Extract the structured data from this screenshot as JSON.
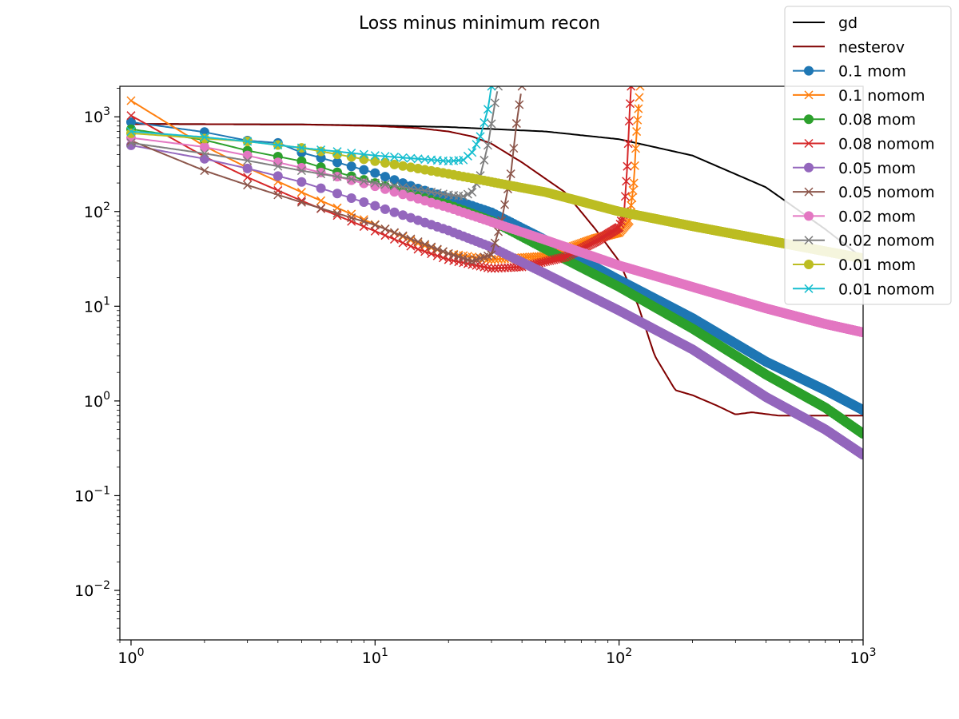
{
  "chart_data": {
    "type": "line",
    "title": "Loss minus minimum recon",
    "xlabel": "",
    "ylabel": "",
    "xscale": "log",
    "yscale": "log",
    "xlim": [
      0.9,
      1000
    ],
    "ylim": [
      0.003,
      2100
    ],
    "grid": false,
    "legend_position": "top-right",
    "x_ticks": [
      {
        "value": 1,
        "base": "10",
        "exp": "0"
      },
      {
        "value": 10,
        "base": "10",
        "exp": "1"
      },
      {
        "value": 100,
        "base": "10",
        "exp": "2"
      },
      {
        "value": 1000,
        "base": "10",
        "exp": "3"
      }
    ],
    "y_ticks": [
      {
        "value": 0.01,
        "base": "10",
        "exp": "−2"
      },
      {
        "value": 0.1,
        "base": "10",
        "exp": "−1"
      },
      {
        "value": 1,
        "base": "10",
        "exp": "0"
      },
      {
        "value": 10,
        "base": "10",
        "exp": "1"
      },
      {
        "value": 100,
        "base": "10",
        "exp": "2"
      },
      {
        "value": 1000,
        "base": "10",
        "exp": "3"
      }
    ],
    "series": [
      {
        "name": "gd",
        "color": "#000000",
        "marker": "none",
        "points": [
          [
            1,
            840
          ],
          [
            5,
            830
          ],
          [
            10,
            810
          ],
          [
            20,
            780
          ],
          [
            50,
            700
          ],
          [
            100,
            580
          ],
          [
            200,
            390
          ],
          [
            400,
            180
          ],
          [
            700,
            65
          ],
          [
            1000,
            32
          ]
        ]
      },
      {
        "name": "nesterov",
        "color": "#800000",
        "marker": "none",
        "points": [
          [
            1,
            840
          ],
          [
            5,
            830
          ],
          [
            10,
            800
          ],
          [
            15,
            760
          ],
          [
            20,
            700
          ],
          [
            25,
            620
          ],
          [
            30,
            520
          ],
          [
            40,
            330
          ],
          [
            60,
            160
          ],
          [
            80,
            65
          ],
          [
            100,
            30
          ],
          [
            120,
            10
          ],
          [
            140,
            3
          ],
          [
            170,
            1.3
          ],
          [
            200,
            1.15
          ],
          [
            250,
            0.9
          ],
          [
            300,
            0.72
          ],
          [
            350,
            0.76
          ],
          [
            450,
            0.7
          ],
          [
            600,
            0.7
          ],
          [
            800,
            0.7
          ],
          [
            1000,
            0.7
          ]
        ]
      },
      {
        "name": "0.1 mom",
        "color": "#1f77b4",
        "marker": "circle",
        "points": [
          [
            1,
            880
          ],
          [
            2,
            690
          ],
          [
            3,
            560
          ],
          [
            4,
            530
          ],
          [
            5,
            420
          ],
          [
            7,
            330
          ],
          [
            10,
            255
          ],
          [
            15,
            175
          ],
          [
            20,
            140
          ],
          [
            30,
            98
          ],
          [
            50,
            50
          ],
          [
            100,
            19
          ],
          [
            200,
            7.5
          ],
          [
            400,
            2.6
          ],
          [
            700,
            1.3
          ],
          [
            1000,
            0.8
          ]
        ]
      },
      {
        "name": "0.1 nomom",
        "color": "#ff7f0e",
        "marker": "x",
        "points": [
          [
            1,
            1480
          ],
          [
            2,
            490
          ],
          [
            3,
            290
          ],
          [
            5,
            160
          ],
          [
            10,
            73
          ],
          [
            15,
            46
          ],
          [
            20,
            36
          ],
          [
            30,
            31
          ],
          [
            50,
            34
          ],
          [
            80,
            52
          ],
          [
            100,
            60
          ],
          [
            110,
            80
          ],
          [
            115,
            200
          ],
          [
            118,
            700
          ],
          [
            122,
            2100
          ]
        ]
      },
      {
        "name": "0.08 mom",
        "color": "#2ca02c",
        "marker": "circle",
        "points": [
          [
            1,
            740
          ],
          [
            2,
            570
          ],
          [
            3,
            440
          ],
          [
            5,
            340
          ],
          [
            7,
            260
          ],
          [
            10,
            200
          ],
          [
            15,
            145
          ],
          [
            20,
            118
          ],
          [
            30,
            80
          ],
          [
            50,
            40
          ],
          [
            100,
            16
          ],
          [
            200,
            5.8
          ],
          [
            400,
            1.9
          ],
          [
            700,
            0.85
          ],
          [
            1000,
            0.45
          ]
        ]
      },
      {
        "name": "0.08 nomom",
        "color": "#d62728",
        "marker": "x",
        "points": [
          [
            1,
            1030
          ],
          [
            2,
            380
          ],
          [
            3,
            230
          ],
          [
            5,
            130
          ],
          [
            10,
            62
          ],
          [
            15,
            40
          ],
          [
            20,
            31
          ],
          [
            30,
            25
          ],
          [
            40,
            26
          ],
          [
            60,
            33
          ],
          [
            80,
            48
          ],
          [
            100,
            68
          ],
          [
            105,
            100
          ],
          [
            108,
            300
          ],
          [
            110,
            900
          ],
          [
            112,
            2100
          ]
        ]
      },
      {
        "name": "0.05 mom",
        "color": "#9467bd",
        "marker": "circle",
        "points": [
          [
            1,
            500
          ],
          [
            2,
            360
          ],
          [
            3,
            285
          ],
          [
            5,
            205
          ],
          [
            10,
            115
          ],
          [
            20,
            63
          ],
          [
            30,
            42
          ],
          [
            50,
            22
          ],
          [
            100,
            9
          ],
          [
            200,
            3.5
          ],
          [
            400,
            1.1
          ],
          [
            700,
            0.5
          ],
          [
            1000,
            0.27
          ]
        ]
      },
      {
        "name": "0.05 nomom",
        "color": "#8c564b",
        "marker": "x",
        "points": [
          [
            1,
            560
          ],
          [
            2,
            270
          ],
          [
            3,
            190
          ],
          [
            5,
            125
          ],
          [
            10,
            72
          ],
          [
            15,
            48
          ],
          [
            20,
            36
          ],
          [
            25,
            30
          ],
          [
            30,
            35
          ],
          [
            33,
            80
          ],
          [
            36,
            250
          ],
          [
            38,
            850
          ],
          [
            40,
            2100
          ]
        ]
      },
      {
        "name": "0.02 mom",
        "color": "#e377c2",
        "marker": "circle",
        "points": [
          [
            1,
            600
          ],
          [
            2,
            480
          ],
          [
            3,
            390
          ],
          [
            5,
            290
          ],
          [
            10,
            185
          ],
          [
            20,
            110
          ],
          [
            50,
            50
          ],
          [
            100,
            27
          ],
          [
            200,
            16
          ],
          [
            400,
            9.5
          ],
          [
            700,
            6.5
          ],
          [
            1000,
            5.3
          ]
        ]
      },
      {
        "name": "0.02 nomom",
        "color": "#7f7f7f",
        "marker": "x",
        "points": [
          [
            1,
            530
          ],
          [
            2,
            410
          ],
          [
            3,
            345
          ],
          [
            5,
            270
          ],
          [
            10,
            200
          ],
          [
            15,
            170
          ],
          [
            20,
            150
          ],
          [
            23,
            145
          ],
          [
            25,
            160
          ],
          [
            27,
            240
          ],
          [
            29,
            500
          ],
          [
            31,
            1400
          ],
          [
            32,
            2100
          ]
        ]
      },
      {
        "name": "0.01 mom",
        "color": "#bcbd22",
        "marker": "circle",
        "points": [
          [
            1,
            670
          ],
          [
            2,
            590
          ],
          [
            3,
            550
          ],
          [
            5,
            470
          ],
          [
            10,
            340
          ],
          [
            20,
            250
          ],
          [
            50,
            160
          ],
          [
            100,
            100
          ],
          [
            200,
            70
          ],
          [
            400,
            50
          ],
          [
            700,
            38
          ],
          [
            1000,
            32
          ]
        ]
      },
      {
        "name": "0.01 nomom",
        "color": "#17becf",
        "marker": "x",
        "points": [
          [
            1,
            700
          ],
          [
            2,
            610
          ],
          [
            3,
            550
          ],
          [
            5,
            470
          ],
          [
            7,
            430
          ],
          [
            10,
            390
          ],
          [
            15,
            360
          ],
          [
            20,
            340
          ],
          [
            23,
            350
          ],
          [
            25,
            420
          ],
          [
            27,
            620
          ],
          [
            29,
            1200
          ],
          [
            30,
            2100
          ]
        ]
      }
    ]
  }
}
